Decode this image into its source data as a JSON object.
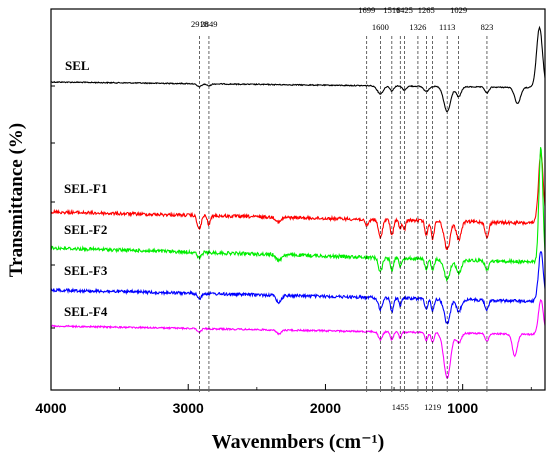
{
  "chart_data": {
    "type": "line",
    "title": "",
    "xlabel": "Wavenmbers (cm⁻¹)",
    "ylabel": "Transmittance (%)",
    "xlim": [
      4000,
      400
    ],
    "x_reversed": true,
    "xticks": [
      4000,
      3000,
      2000,
      1000
    ],
    "yticks_labeled": false,
    "grid": false,
    "legend": "none",
    "series": [
      {
        "name": "SEL",
        "color": "#000000"
      },
      {
        "name": "SEL-F1",
        "color": "#ff0000"
      },
      {
        "name": "SEL-F2",
        "color": "#00ee00"
      },
      {
        "name": "SEL-F3",
        "color": "#0000ff"
      },
      {
        "name": "SEL-F4",
        "color": "#ff00ff"
      }
    ],
    "annotations": [
      {
        "label": "2918",
        "x": 2918,
        "position": "top"
      },
      {
        "label": "2849",
        "x": 2849,
        "position": "top"
      },
      {
        "label": "1699",
        "x": 1699,
        "position": "top"
      },
      {
        "label": "1600",
        "x": 1600,
        "position": "top"
      },
      {
        "label": "1516",
        "x": 1516,
        "position": "top"
      },
      {
        "label": "1425",
        "x": 1425,
        "position": "top"
      },
      {
        "label": "1326",
        "x": 1326,
        "position": "top"
      },
      {
        "label": "1265",
        "x": 1265,
        "position": "top"
      },
      {
        "label": "1113",
        "x": 1113,
        "position": "top"
      },
      {
        "label": "1029",
        "x": 1029,
        "position": "top"
      },
      {
        "label": "823",
        "x": 823,
        "position": "top"
      },
      {
        "label": "1455",
        "x": 1455,
        "position": "bottom"
      },
      {
        "label": "1219",
        "x": 1219,
        "position": "bottom"
      }
    ]
  }
}
